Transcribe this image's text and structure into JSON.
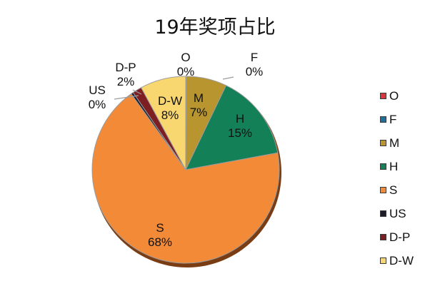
{
  "chart_data": {
    "type": "pie",
    "title": "19年奖项占比",
    "slices": [
      {
        "name": "O",
        "value": 0,
        "label_value": "0%",
        "color": "#d9363e"
      },
      {
        "name": "F",
        "value": 0.1,
        "label_value": "0%",
        "color": "#1f6f9b"
      },
      {
        "name": "M",
        "value": 7,
        "label_value": "7%",
        "color": "#b8952f"
      },
      {
        "name": "H",
        "value": 15,
        "label_value": "15%",
        "color": "#138058"
      },
      {
        "name": "S",
        "value": 68,
        "label_value": "68%",
        "color": "#f28a38"
      },
      {
        "name": "US",
        "value": 0.4,
        "label_value": "0%",
        "color": "#1c1c2a"
      },
      {
        "name": "D-P",
        "value": 1.6,
        "label_value": "2%",
        "color": "#7d1e22"
      },
      {
        "name": "D-W",
        "value": 7.9,
        "label_value": "8%",
        "color": "#f8d770"
      }
    ],
    "legend_position": "right"
  }
}
